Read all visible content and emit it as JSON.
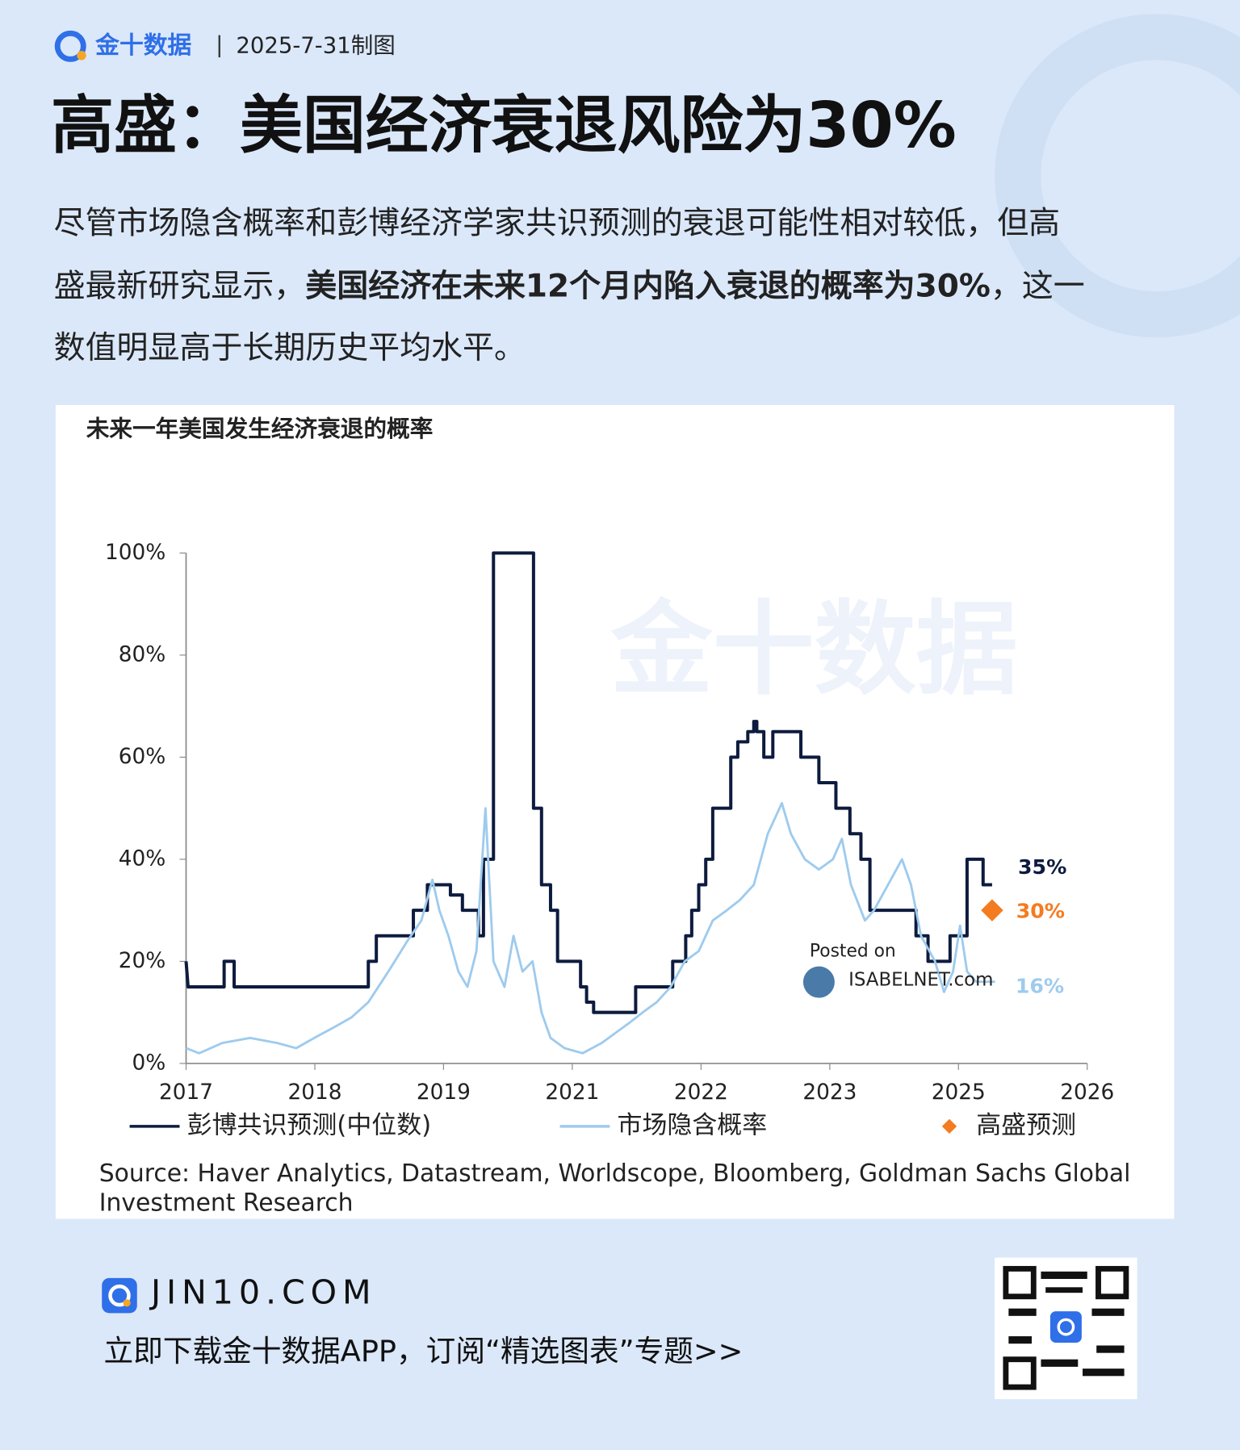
{
  "header": {
    "brand": "金十数据",
    "date": "2025-7-31制图"
  },
  "title": "高盛：美国经济衰退风险为30%",
  "body": {
    "lines": [
      [
        "尽管市场隐含概率和彭博经济学家共识预测的衰退可能性相对较低，但高"
      ],
      [
        "盛最新研究显示，",
        "美国经济在未来12个月内陷入衰退的概率为30%",
        "，这一"
      ],
      [
        "数值明显高于长期历史平均水平。"
      ]
    ]
  },
  "chart_data": {
    "type": "line",
    "title": "未来一年美国发生经济衰退的概率",
    "watermark": "金十数据",
    "annotation": [
      "Posted on",
      "ISABELNET.com"
    ],
    "xlim": [
      2017,
      2026
    ],
    "xticks": [
      2017,
      {
        "value": 2018.286,
        "label": "2018"
      },
      {
        "value": 2019.571,
        "label": "2019"
      },
      {
        "value": 2020.857,
        "label": "2021"
      },
      {
        "value": 2022.143,
        "label": "2022"
      },
      {
        "value": 2023.429,
        "label": "2023"
      },
      {
        "value": 2024.714,
        "label": "2025"
      },
      2026
    ],
    "ylim": [
      0,
      100
    ],
    "yticks": [
      {
        "value": 0,
        "label": "0%"
      },
      {
        "value": 20,
        "label": "20%"
      },
      {
        "value": 40,
        "label": "40%"
      },
      {
        "value": 60,
        "label": "60%"
      },
      {
        "value": 80,
        "label": "80%"
      },
      {
        "value": 100,
        "label": "100%"
      }
    ],
    "series": [
      {
        "name": "彭博共识预测(中位数)",
        "color": "#0d1b3e",
        "end_label": "35%",
        "x": [
          2017.0,
          2017.02,
          2017.38,
          2017.38,
          2017.48,
          2017.48,
          2018.82,
          2018.82,
          2018.9,
          2018.9,
          2019.27,
          2019.27,
          2019.41,
          2019.41,
          2019.64,
          2019.64,
          2019.76,
          2019.76,
          2019.92,
          2019.92,
          2019.97,
          2019.97,
          2020.07,
          2020.07,
          2020.47,
          2020.47,
          2020.55,
          2020.55,
          2020.64,
          2020.64,
          2020.71,
          2020.71,
          2020.94,
          2020.94,
          2021.0,
          2021.0,
          2021.07,
          2021.07,
          2021.49,
          2021.49,
          2021.86,
          2021.86,
          2021.99,
          2021.99,
          2022.05,
          2022.05,
          2022.12,
          2022.12,
          2022.19,
          2022.19,
          2022.26,
          2022.26,
          2022.44,
          2022.44,
          2022.51,
          2022.51,
          2022.61,
          2022.61,
          2022.67,
          2022.67,
          2022.7,
          2022.7,
          2022.77,
          2022.77,
          2022.86,
          2022.86,
          2023.14,
          2023.14,
          2023.32,
          2023.32,
          2023.49,
          2023.49,
          2023.63,
          2023.63,
          2023.74,
          2023.74,
          2023.83,
          2023.83,
          2024.29,
          2024.29,
          2024.41,
          2024.41,
          2024.63,
          2024.63,
          2024.8,
          2024.8,
          2024.96,
          2024.96,
          2025.05
        ],
        "values": [
          20,
          15,
          15,
          20,
          20,
          15,
          15,
          20,
          20,
          25,
          25,
          30,
          30,
          35,
          35,
          33,
          33,
          30,
          30,
          25,
          25,
          40,
          40,
          100,
          100,
          50,
          50,
          35,
          35,
          30,
          30,
          20,
          20,
          15,
          15,
          12,
          12,
          10,
          10,
          15,
          15,
          20,
          20,
          25,
          25,
          30,
          30,
          35,
          35,
          40,
          40,
          50,
          50,
          60,
          60,
          63,
          63,
          65,
          65,
          67,
          67,
          65,
          65,
          60,
          60,
          65,
          65,
          60,
          60,
          55,
          55,
          50,
          50,
          45,
          45,
          40,
          40,
          30,
          30,
          25,
          25,
          20,
          20,
          25,
          25,
          40,
          40,
          35,
          35
        ]
      },
      {
        "name": "市场隐含概率",
        "color": "#9ecbee",
        "end_label": "16%",
        "x": [
          2017.0,
          2017.13,
          2017.36,
          2017.64,
          2017.91,
          2018.1,
          2018.28,
          2018.47,
          2018.65,
          2018.82,
          2019.02,
          2019.21,
          2019.35,
          2019.46,
          2019.53,
          2019.62,
          2019.72,
          2019.81,
          2019.9,
          2019.99,
          2020.07,
          2020.18,
          2020.27,
          2020.36,
          2020.46,
          2020.55,
          2020.64,
          2020.78,
          2020.96,
          2021.15,
          2021.29,
          2021.43,
          2021.56,
          2021.7,
          2021.84,
          2021.98,
          2022.12,
          2022.26,
          2022.4,
          2022.53,
          2022.67,
          2022.81,
          2022.95,
          2023.04,
          2023.18,
          2023.32,
          2023.46,
          2023.55,
          2023.64,
          2023.78,
          2023.87,
          2024.01,
          2024.15,
          2024.24,
          2024.34,
          2024.48,
          2024.57,
          2024.66,
          2024.73,
          2024.8,
          2024.89,
          2025.08
        ],
        "values": [
          3,
          2,
          4,
          5,
          4,
          3,
          5,
          7,
          9,
          12,
          18,
          24,
          28,
          36,
          30,
          25,
          18,
          15,
          22,
          50,
          20,
          15,
          25,
          18,
          20,
          10,
          5,
          3,
          2,
          4,
          6,
          8,
          10,
          12,
          15,
          20,
          22,
          28,
          30,
          32,
          35,
          45,
          51,
          45,
          40,
          38,
          40,
          44,
          35,
          28,
          30,
          35,
          40,
          35,
          25,
          20,
          14,
          18,
          27,
          18,
          16,
          16
        ]
      },
      {
        "name": "高盛预测",
        "color": "#f47b20",
        "end_label": "30%",
        "x": [
          2025.05
        ],
        "values": [
          30
        ]
      }
    ],
    "source": [
      "Source: Haver Analytics, Datastream, Worldscope, Bloomberg, Goldman Sachs Global",
      "Investment Research"
    ]
  },
  "footer": {
    "site": "JIN10.COM",
    "cta": "立即下载金十数据APP，订阅“精选图表”专题>>"
  }
}
